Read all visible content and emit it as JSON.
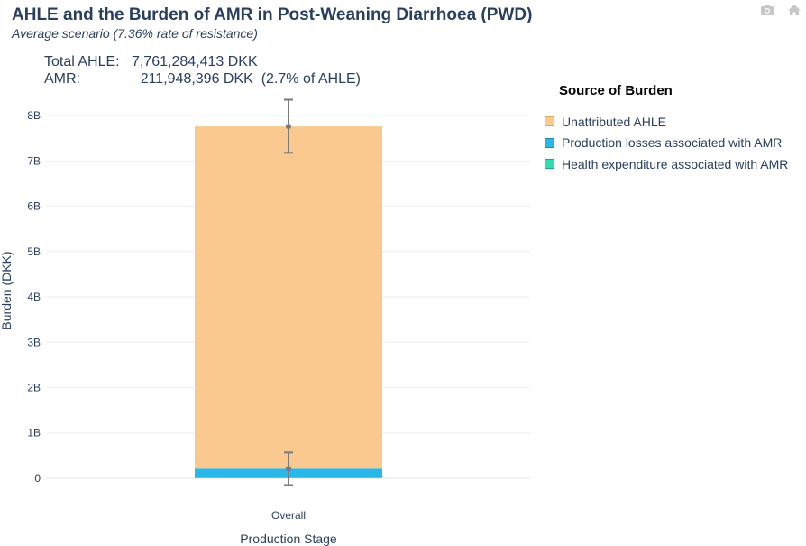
{
  "header": {
    "title": "AHLE and the Burden of AMR in Post-Weaning Diarrhoea (PWD)",
    "subtitle": "Average scenario (7.36% rate of resistance)"
  },
  "summary": {
    "total_label": "Total AHLE:",
    "total_value": "7,761,284,413 DKK",
    "amr_label": "AMR:",
    "amr_value": "211,948,396 DKK",
    "amr_share": "(2.7% of AHLE)"
  },
  "toolbar": {
    "camera_icon": "camera-icon",
    "home_icon": "home-icon"
  },
  "legend": {
    "title": "Source of Burden",
    "items": [
      {
        "label": "Unattributed AHLE",
        "color": "#f9c990",
        "border": "#e0a663"
      },
      {
        "label": "Production losses associated with AMR",
        "color": "#29b6e8",
        "border": "#1e88b5"
      },
      {
        "label": "Health expenditure associated with AMR",
        "color": "#2ee0b0",
        "border": "#1fa883"
      }
    ]
  },
  "chart_data": {
    "type": "bar",
    "stacked": true,
    "categories": [
      "Overall"
    ],
    "xlabel": "Production Stage",
    "ylabel": "Burden (DKK)",
    "ylim": [
      -200000000,
      8400000000
    ],
    "yticks": [
      0,
      1000000000,
      2000000000,
      3000000000,
      4000000000,
      5000000000,
      6000000000,
      7000000000,
      8000000000
    ],
    "ytick_labels": [
      "0",
      "1B",
      "2B",
      "3B",
      "4B",
      "5B",
      "6B",
      "7B",
      "8B"
    ],
    "grid": true,
    "series": [
      {
        "name": "Health expenditure associated with AMR",
        "values": [
          30000000
        ],
        "color": "#2ee0b0"
      },
      {
        "name": "Production losses associated with AMR",
        "values": [
          182000000
        ],
        "color": "#29b6e8"
      },
      {
        "name": "Unattributed AHLE",
        "values": [
          7549000000
        ],
        "color": "#f9c990"
      }
    ],
    "error_bars": [
      {
        "center": 7761284413,
        "low": 7180000000,
        "high": 8350000000
      },
      {
        "center": 211948396,
        "low": -150000000,
        "high": 570000000
      }
    ]
  }
}
